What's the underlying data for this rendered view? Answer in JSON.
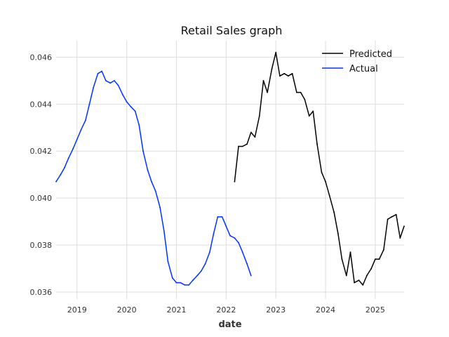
{
  "chart_data": {
    "type": "line",
    "title": "Retail Sales graph",
    "xlabel": "date",
    "ylabel": "",
    "xlim": [
      2018.58,
      2025.58
    ],
    "ylim": [
      0.0357,
      0.0467
    ],
    "x_ticks": [
      2019,
      2020,
      2021,
      2022,
      2023,
      2024,
      2025
    ],
    "x_tick_labels": [
      "2019",
      "2020",
      "2021",
      "2022",
      "2023",
      "2024",
      "2025"
    ],
    "y_ticks": [
      0.036,
      0.038,
      0.04,
      0.042,
      0.044,
      0.046
    ],
    "y_tick_labels": [
      "0.036",
      "0.038",
      "0.040",
      "0.042",
      "0.044",
      "0.046"
    ],
    "grid": true,
    "legend_position": "top-right",
    "series": [
      {
        "name": "Predicted",
        "color": "#000000",
        "x": [
          2022.17,
          2022.25,
          2022.33,
          2022.42,
          2022.5,
          2022.58,
          2022.67,
          2022.75,
          2022.83,
          2022.92,
          2023.0,
          2023.08,
          2023.17,
          2023.25,
          2023.33,
          2023.42,
          2023.5,
          2023.58,
          2023.67,
          2023.75,
          2023.83,
          2023.92,
          2024.0,
          2024.08,
          2024.17,
          2024.25,
          2024.33,
          2024.42,
          2024.5,
          2024.58,
          2024.67,
          2024.75,
          2024.83,
          2024.92,
          2025.0,
          2025.08,
          2025.17,
          2025.25,
          2025.33,
          2025.42,
          2025.5,
          2025.58
        ],
        "values": [
          0.0407,
          0.0422,
          0.0422,
          0.0423,
          0.0428,
          0.0426,
          0.0435,
          0.045,
          0.0445,
          0.0455,
          0.0462,
          0.0452,
          0.0453,
          0.0452,
          0.0453,
          0.0445,
          0.0445,
          0.0442,
          0.0435,
          0.0437,
          0.0423,
          0.0411,
          0.0407,
          0.0401,
          0.0394,
          0.0385,
          0.0374,
          0.0367,
          0.0377,
          0.0364,
          0.0365,
          0.0363,
          0.0367,
          0.037,
          0.0374,
          0.0374,
          0.0378,
          0.0391,
          0.0392,
          0.0393,
          0.0383,
          0.0388
        ]
      },
      {
        "name": "Actual",
        "color": "#0033ff",
        "x": [
          2018.58,
          2018.67,
          2018.75,
          2018.83,
          2018.92,
          2019.0,
          2019.08,
          2019.17,
          2019.25,
          2019.33,
          2019.42,
          2019.5,
          2019.58,
          2019.67,
          2019.75,
          2019.83,
          2019.92,
          2020.0,
          2020.08,
          2020.17,
          2020.25,
          2020.33,
          2020.42,
          2020.5,
          2020.58,
          2020.67,
          2020.75,
          2020.83,
          2020.92,
          2021.0,
          2021.08,
          2021.17,
          2021.25,
          2021.33,
          2021.42,
          2021.5,
          2021.58,
          2021.67,
          2021.75,
          2021.83,
          2021.92,
          2022.0,
          2022.08,
          2022.17,
          2022.25,
          2022.33,
          2022.42,
          2022.5
        ],
        "values": [
          0.0407,
          0.041,
          0.0413,
          0.0417,
          0.0421,
          0.0425,
          0.0429,
          0.0433,
          0.044,
          0.0447,
          0.0453,
          0.0454,
          0.045,
          0.0449,
          0.045,
          0.0448,
          0.0444,
          0.0441,
          0.0439,
          0.0437,
          0.0431,
          0.042,
          0.0412,
          0.0407,
          0.0403,
          0.0396,
          0.0386,
          0.0373,
          0.0366,
          0.0364,
          0.0364,
          0.0363,
          0.0363,
          0.0365,
          0.0367,
          0.0369,
          0.0372,
          0.0377,
          0.0385,
          0.0392,
          0.0392,
          0.0388,
          0.0384,
          0.0383,
          0.0381,
          0.0377,
          0.0372,
          0.0367
        ]
      }
    ]
  }
}
